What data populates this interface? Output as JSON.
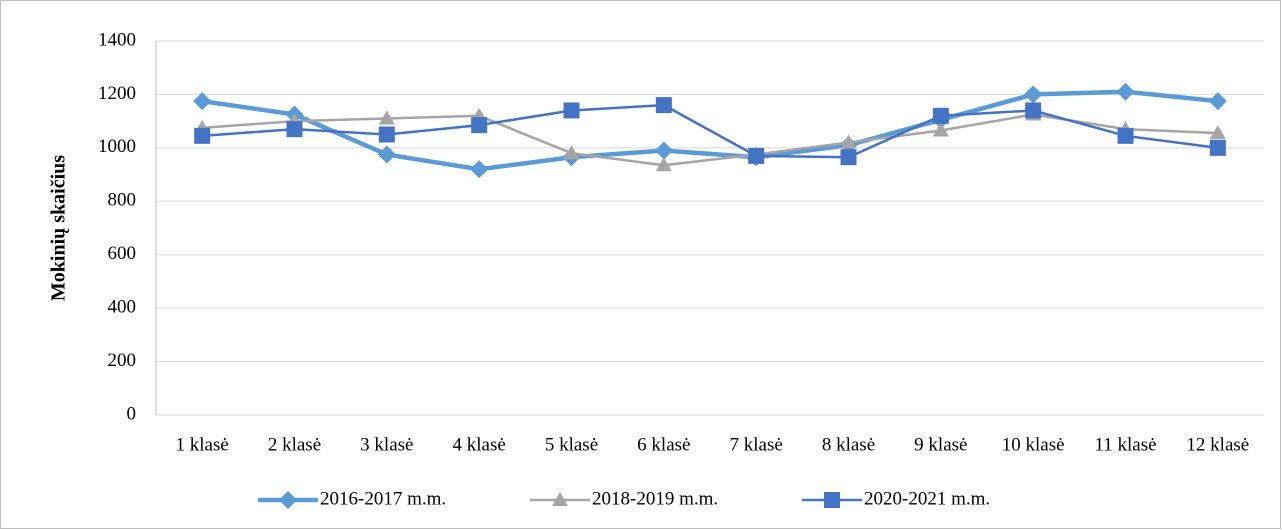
{
  "chart_data": {
    "type": "line",
    "y_label": "Mokinių skaičius",
    "categories": [
      "1 klasė",
      "2 klasė",
      "3 klasė",
      "4 klasė",
      "5 klasė",
      "6 klasė",
      "7 klasė",
      "8 klasė",
      "9 klasė",
      "10 klasė",
      "11 klasė",
      "12 klasė"
    ],
    "series": [
      {
        "name": "2016-2017 m.m.",
        "color": "#5b9bd5",
        "marker": "diamond",
        "values": [
          1175,
          1125,
          975,
          920,
          965,
          990,
          965,
          1010,
          1105,
          1200,
          1210,
          1175
        ]
      },
      {
        "name": "2018-2019 m.m.",
        "color": "#a5a5a5",
        "marker": "triangle",
        "values": [
          1075,
          1100,
          1110,
          1120,
          980,
          935,
          975,
          1020,
          1065,
          1125,
          1070,
          1055
        ]
      },
      {
        "name": "2020-2021 m.m.",
        "color": "#4472c4",
        "marker": "square",
        "values": [
          1045,
          1070,
          1050,
          1085,
          1140,
          1160,
          970,
          965,
          1120,
          1140,
          1045,
          1000
        ]
      }
    ],
    "ylim": [
      0,
      1400
    ],
    "yticks": [
      0,
      200,
      400,
      600,
      800,
      1000,
      1200,
      1400
    ],
    "grid": true,
    "legend": "bottom"
  }
}
